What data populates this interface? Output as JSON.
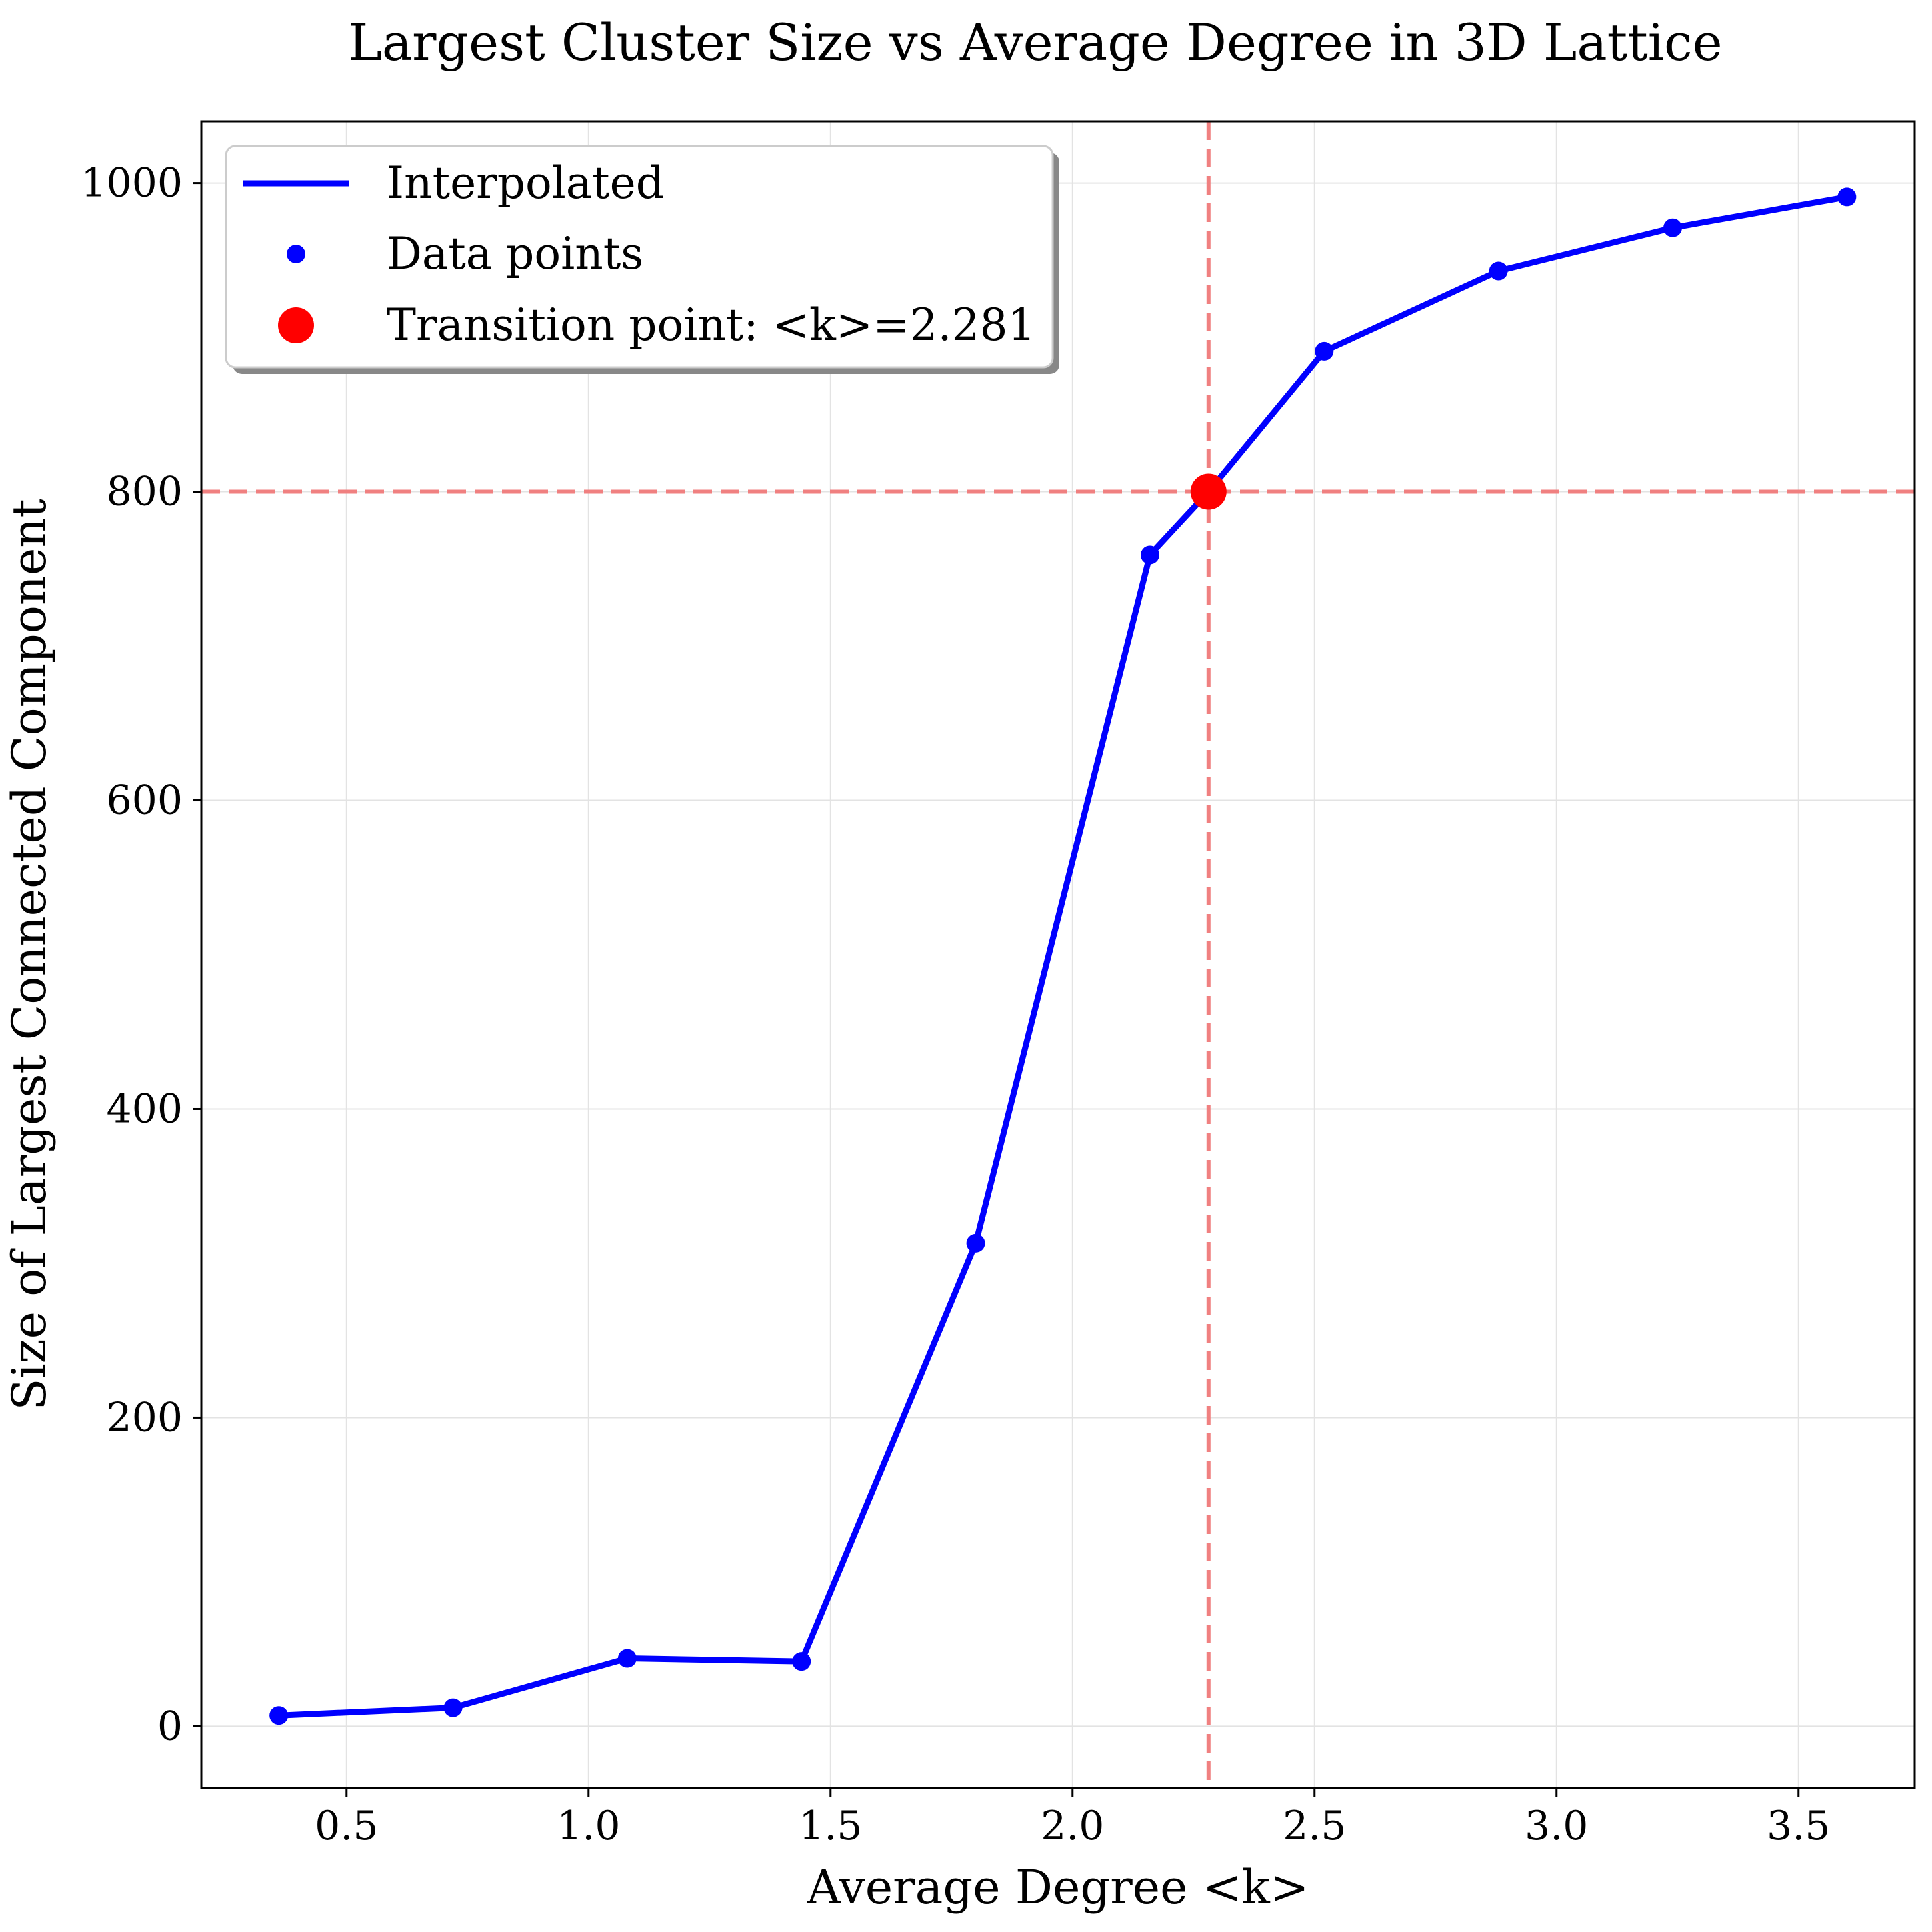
{
  "chart_data": {
    "type": "line",
    "title": "Largest Cluster Size vs Average Degree in 3D Lattice",
    "xlabel": "Average Degree <k>",
    "ylabel": "Size of Largest Connected Component",
    "xlim": [
      0.2,
      3.74
    ],
    "ylim": [
      -40,
      1040
    ],
    "xticks": [
      0.5,
      1.0,
      1.5,
      2.0,
      2.5,
      3.0,
      3.5
    ],
    "xtick_labels": [
      "0.5",
      "1.0",
      "1.5",
      "2.0",
      "2.5",
      "3.0",
      "3.5"
    ],
    "yticks": [
      0,
      200,
      400,
      600,
      800,
      1000
    ],
    "ytick_labels": [
      "0",
      "200",
      "400",
      "600",
      "800",
      "1000"
    ],
    "grid": true,
    "legend_position": "top-left",
    "series": [
      {
        "name": "Interpolated",
        "kind": "line",
        "color": "#0000ff",
        "x": [
          0.36,
          0.72,
          1.08,
          1.44,
          1.8,
          2.16,
          2.281,
          2.52,
          2.88,
          3.24,
          3.6
        ],
        "y": [
          7,
          12,
          44,
          42,
          313,
          759,
          800,
          891,
          943,
          971,
          991
        ]
      },
      {
        "name": "Data points",
        "kind": "scatter",
        "color": "#0000ff",
        "x": [
          0.36,
          0.72,
          1.08,
          1.44,
          1.8,
          2.16,
          2.52,
          2.88,
          3.24,
          3.6
        ],
        "y": [
          7,
          12,
          44,
          42,
          313,
          759,
          891,
          943,
          971,
          991
        ]
      },
      {
        "name": "Transition point: <k>=2.281",
        "kind": "marker",
        "color": "#ff0000",
        "x": [
          2.281
        ],
        "y": [
          800
        ]
      }
    ],
    "reference_lines": {
      "color": "#f08080",
      "vertical_x": 2.281,
      "horizontal_y": 800
    }
  }
}
